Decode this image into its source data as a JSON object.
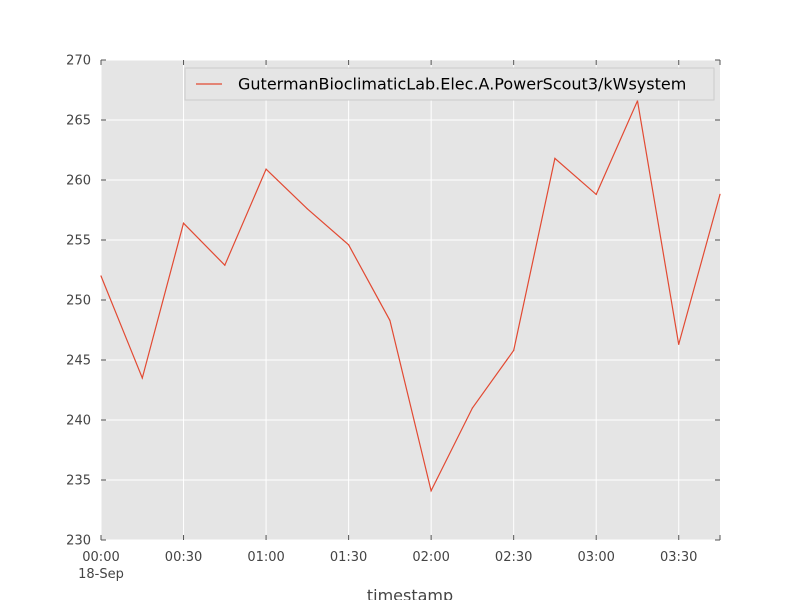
{
  "chart_data": {
    "type": "line",
    "title": "",
    "xlabel": "timestamp",
    "ylabel": "",
    "ylim": [
      230,
      270
    ],
    "yticks": [
      230,
      235,
      240,
      245,
      250,
      255,
      260,
      265,
      270
    ],
    "xlim_minutes": [
      0,
      225
    ],
    "xticks": [
      {
        "minutes": 0,
        "label": "00:00",
        "sublabel": "18-Sep"
      },
      {
        "minutes": 30,
        "label": "00:30"
      },
      {
        "minutes": 60,
        "label": "01:00"
      },
      {
        "minutes": 90,
        "label": "01:30"
      },
      {
        "minutes": 120,
        "label": "02:00"
      },
      {
        "minutes": 150,
        "label": "02:30"
      },
      {
        "minutes": 180,
        "label": "03:00"
      },
      {
        "minutes": 210,
        "label": "03:30"
      }
    ],
    "grid": true,
    "legend_position": "top-right",
    "series": [
      {
        "name": "GutermanBioclimaticLab.Elec.A.PowerScout3/kWsystem",
        "color": "#e24a33",
        "x_minutes": [
          0,
          15,
          30,
          45,
          60,
          75,
          90,
          105,
          120,
          135,
          150,
          165,
          180,
          195,
          210,
          225
        ],
        "values": [
          252.0,
          243.5,
          256.4,
          252.9,
          260.9,
          257.6,
          254.6,
          248.3,
          234.1,
          241.0,
          245.8,
          261.8,
          258.8,
          266.6,
          246.3,
          258.8
        ]
      }
    ]
  }
}
